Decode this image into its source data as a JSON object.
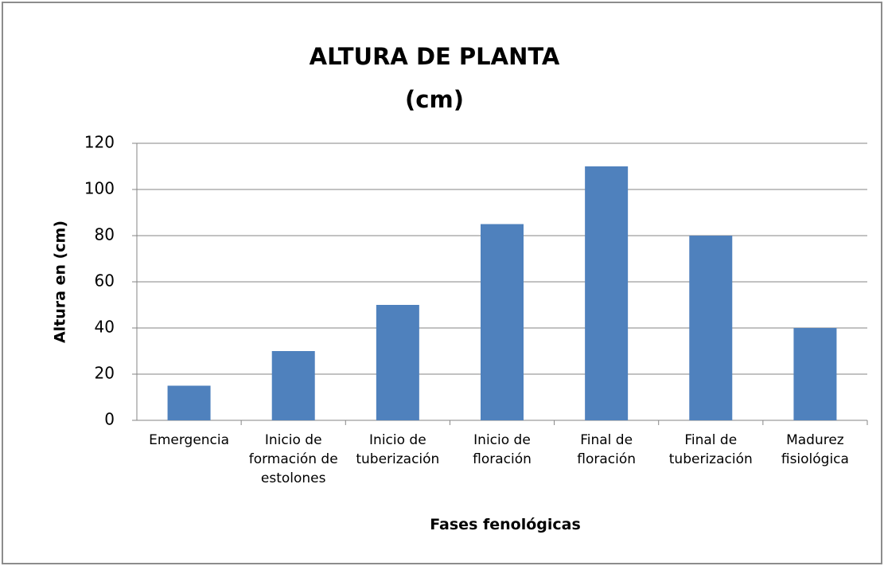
{
  "chart_data": {
    "type": "bar",
    "title": "ALTURA DE PLANTA (cm)",
    "x_label": "Fases fenológicas",
    "y_label": "Altura en (cm)",
    "categories": [
      "Emergencia",
      "Inicio de formación de estolones",
      "Inicio de tuberización",
      "Inicio de floración",
      "Final de floración",
      "Final de tuberización",
      "Madurez fisiológica"
    ],
    "values": [
      15,
      30,
      50,
      85,
      110,
      80,
      40
    ],
    "color": "#4f81bd",
    "ylim": [
      0,
      120
    ],
    "yticks": [
      0,
      20,
      40,
      60,
      80,
      100,
      120
    ],
    "grid": true
  }
}
